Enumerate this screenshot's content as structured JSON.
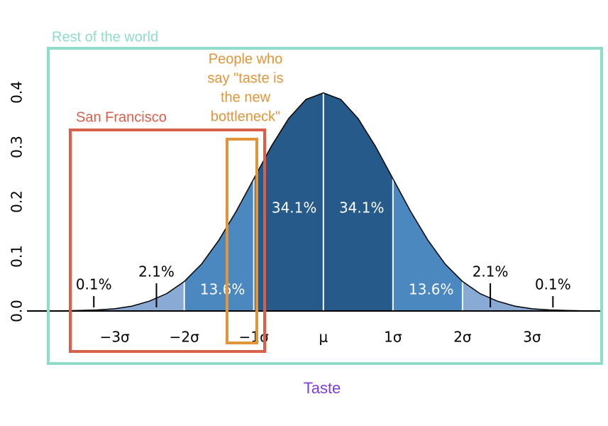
{
  "chart_data": {
    "type": "area",
    "x": [
      -3.75,
      -3.5,
      -3.25,
      -3,
      -2.75,
      -2.5,
      -2.25,
      -2,
      -1.75,
      -1.5,
      -1.25,
      -1,
      -0.75,
      -0.5,
      -0.25,
      0,
      0.25,
      0.5,
      0.75,
      1,
      1.25,
      1.5,
      1.75,
      2,
      2.25,
      2.5,
      2.75,
      3,
      3.25,
      3.5,
      3.75
    ],
    "values": [
      0.0004,
      0.0009,
      0.002,
      0.004,
      0.009,
      0.018,
      0.032,
      0.054,
      0.086,
      0.13,
      0.183,
      0.242,
      0.301,
      0.352,
      0.387,
      0.399,
      0.387,
      0.352,
      0.301,
      0.242,
      0.183,
      0.13,
      0.086,
      0.054,
      0.032,
      0.018,
      0.009,
      0.004,
      0.002,
      0.0009,
      0.0004
    ],
    "xlim": [
      -4.2,
      4
    ],
    "ylim": [
      0,
      0.4
    ],
    "yticks": [
      {
        "value": 0,
        "label": "0.0"
      },
      0.1,
      0.2,
      0.3,
      0.4
    ],
    "xticks": [
      {
        "value": -3,
        "label": "−3σ"
      },
      {
        "value": -2,
        "label": "−2σ"
      },
      {
        "value": -1,
        "label": "−1σ"
      },
      {
        "value": 0,
        "label": "μ"
      },
      {
        "value": 1,
        "label": "1σ"
      },
      {
        "value": 2,
        "label": "2σ"
      },
      {
        "value": 3,
        "label": "3σ"
      }
    ],
    "regions": {
      "edges": [
        -3.75,
        -2,
        -1,
        0,
        1,
        2,
        3.75
      ],
      "colors": [
        "#8aaad6",
        "#4a88bf",
        "#255a8b",
        "#255a8b",
        "#4a88bf",
        "#8aaad6"
      ]
    },
    "percent_labels": {
      "x": [
        -3.3,
        -2.4,
        -1.45,
        -0.42,
        0.55,
        1.55,
        2.4,
        3.3
      ],
      "values": [
        0.1,
        2.1,
        13.6,
        34.1,
        34.1,
        13.6,
        2.1,
        0.1
      ],
      "value_labels": [
        "0.1%",
        "2.1%",
        "13.6%",
        "34.1%",
        "34.1%",
        "13.6%",
        "2.1%",
        "0.1%"
      ]
    },
    "xlabel": "Taste",
    "annotations": {
      "world": "Rest of the world",
      "sf": "San Francisco",
      "people": [
        "People who",
        "say \"taste is",
        "the new",
        "bottleneck\""
      ]
    }
  }
}
